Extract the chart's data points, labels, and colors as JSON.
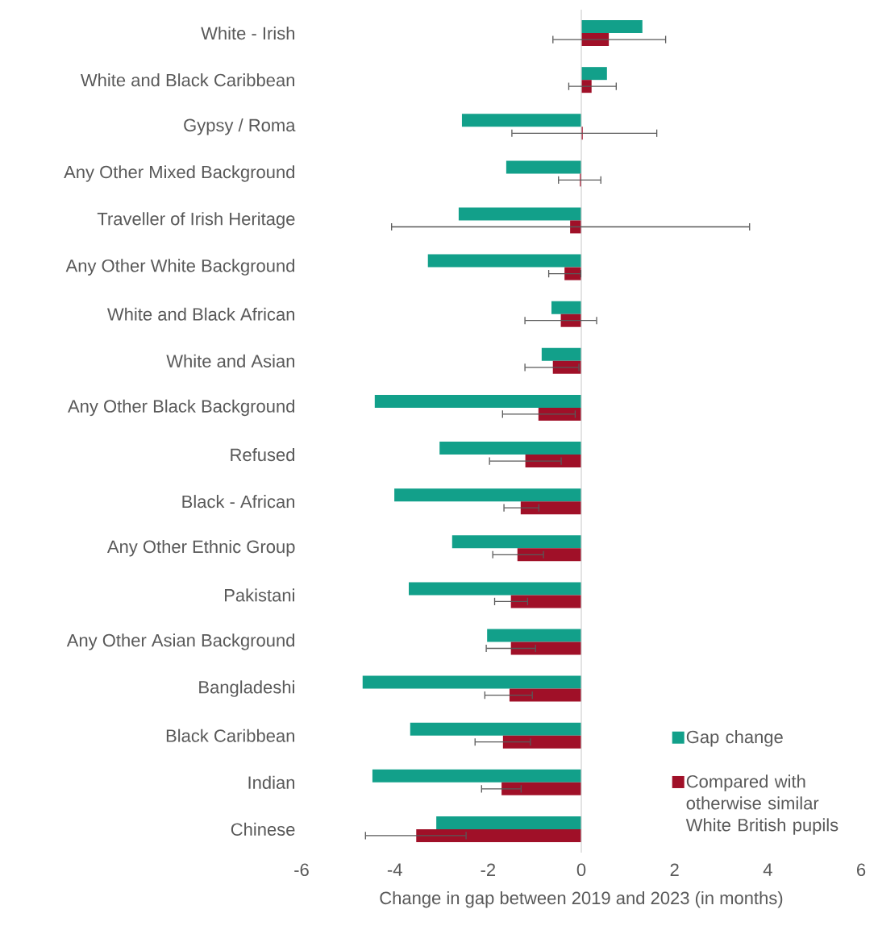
{
  "chart_data": {
    "type": "bar",
    "orientation": "horizontal",
    "xlabel": "Change in gap between 2019 and 2023 (in months)",
    "categories": [
      "White - Irish",
      "White and Black Caribbean",
      "Gypsy / Roma",
      "Any Other Mixed Background",
      "Traveller of Irish Heritage",
      "Any Other White Background",
      "White and Black African",
      "White and Asian",
      "Any Other Black Background",
      "Refused",
      "Black - African",
      "Any Other Ethnic Group",
      "Pakistani",
      "Any Other Asian Background",
      "Bangladeshi",
      "Black Caribbean",
      "Indian",
      "Chinese"
    ],
    "series": [
      {
        "name": "Gap change",
        "color": "#12a08a",
        "values": [
          1.31,
          0.55,
          -2.56,
          -1.61,
          -2.63,
          -3.29,
          -0.64,
          -0.85,
          -4.43,
          -3.04,
          -4.01,
          -2.77,
          -3.7,
          -2.02,
          -4.69,
          -3.67,
          -4.48,
          -3.11
        ]
      },
      {
        "name": "Compared with otherwise similar White British pupils",
        "color": "#a01028",
        "values": [
          0.59,
          0.22,
          0.03,
          -0.03,
          -0.24,
          -0.36,
          -0.44,
          -0.61,
          -0.92,
          -1.2,
          -1.3,
          -1.37,
          -1.51,
          -1.51,
          -1.54,
          -1.68,
          -1.71,
          -3.54
        ],
        "errors": [
          [
            -0.62,
            1.82
          ],
          [
            -0.28,
            0.76
          ],
          [
            -1.5,
            1.63
          ],
          [
            -0.5,
            0.43
          ],
          [
            -4.08,
            3.62
          ],
          [
            -0.71,
            0.0
          ],
          [
            -1.22,
            0.34
          ],
          [
            -1.22,
            -0.04
          ],
          [
            -1.7,
            -0.12
          ],
          [
            -1.98,
            -0.42
          ],
          [
            -1.67,
            -0.9
          ],
          [
            -1.91,
            -0.8
          ],
          [
            -1.87,
            -1.14
          ],
          [
            -2.05,
            -0.97
          ],
          [
            -2.08,
            -1.04
          ],
          [
            -2.29,
            -1.08
          ],
          [
            -2.15,
            -1.28
          ],
          [
            -4.64,
            -2.46
          ]
        ]
      }
    ],
    "xlim": [
      -6,
      6
    ],
    "xticks": [
      -6,
      -4,
      -2,
      0,
      2,
      4,
      6
    ],
    "legend": "bottom right"
  }
}
